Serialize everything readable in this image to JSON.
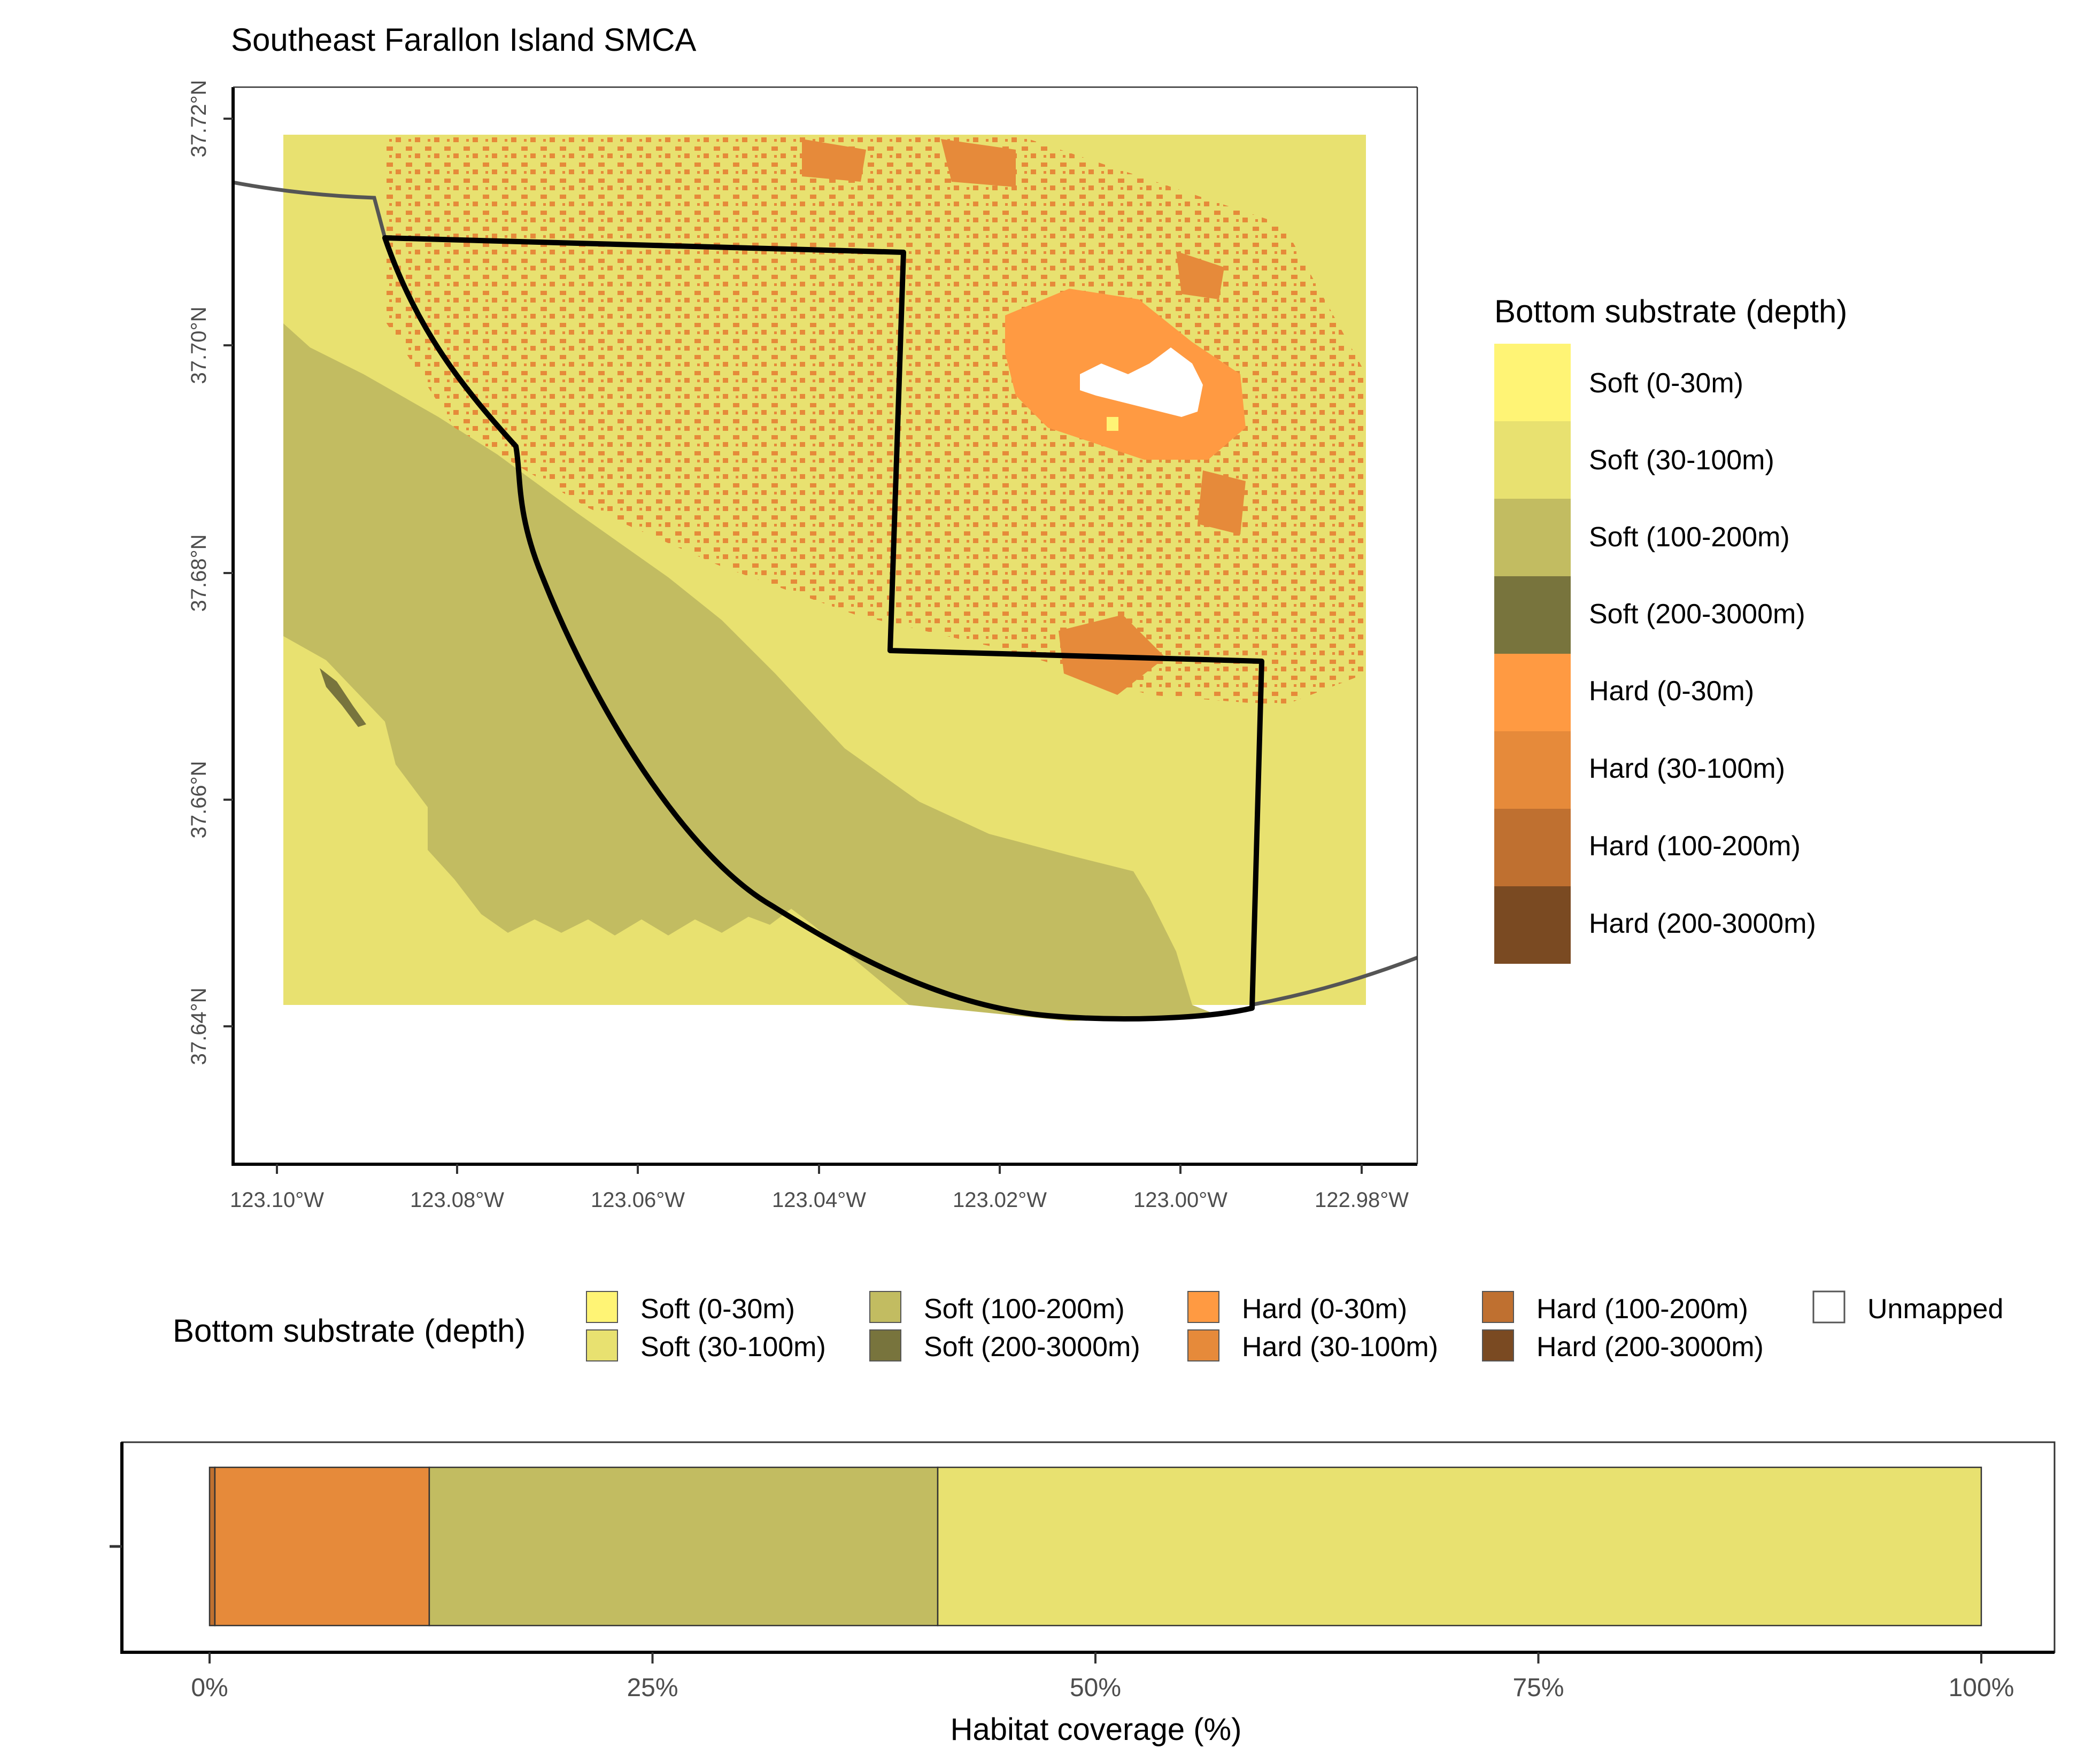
{
  "title": "Southeast Farallon Island SMCA",
  "map": {
    "x_ticks": [
      "123.10°W",
      "123.08°W",
      "123.06°W",
      "123.04°W",
      "123.02°W",
      "123.00°W",
      "122.98°W"
    ],
    "y_ticks": [
      "37.72°N",
      "37.70°N",
      "37.68°N",
      "37.66°N",
      "37.64°N"
    ]
  },
  "legend_title": "Bottom substrate (depth)",
  "categories": [
    {
      "key": "soft_0_30",
      "label": "Soft (0-30m)",
      "color": "#FFF475"
    },
    {
      "key": "soft_30_100",
      "label": "Soft (30-100m)",
      "color": "#E8E170"
    },
    {
      "key": "soft_100_200",
      "label": "Soft (100-200m)",
      "color": "#C2BC61"
    },
    {
      "key": "soft_200_3000",
      "label": "Soft (200-3000m)",
      "color": "#78743D"
    },
    {
      "key": "hard_0_30",
      "label": "Hard (0-30m)",
      "color": "#FF9A42"
    },
    {
      "key": "hard_30_100",
      "label": "Hard (30-100m)",
      "color": "#E68A3A"
    },
    {
      "key": "hard_100_200",
      "label": "Hard (100-200m)",
      "color": "#BF7030"
    },
    {
      "key": "hard_200_3000",
      "label": "Hard (200-3000m)",
      "color": "#7A4A22"
    }
  ],
  "unmapped_label": "Unmapped",
  "chart_data": {
    "type": "bar",
    "orientation": "horizontal",
    "stacked": true,
    "xlabel": "Habitat coverage (%)",
    "ylabel": "",
    "xlim": [
      0,
      100
    ],
    "x_ticks": [
      "0%",
      "25%",
      "50%",
      "75%",
      "100%"
    ],
    "series": [
      {
        "name": "Hard (100-200m)",
        "value": 0.3
      },
      {
        "name": "Hard (30-100m)",
        "value": 12.1
      },
      {
        "name": "Soft (100-200m)",
        "value": 28.7
      },
      {
        "name": "Soft (30-100m)",
        "value": 58.9
      }
    ]
  }
}
